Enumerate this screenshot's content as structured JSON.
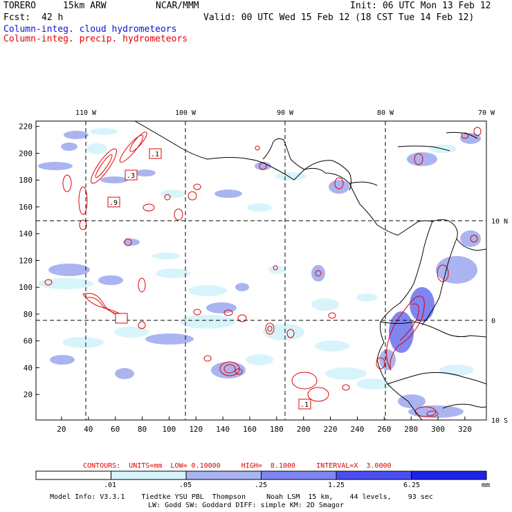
{
  "header": {
    "model": "TORERO",
    "resolution": "15km ARW",
    "org": "NCAR/MMM",
    "init": "Init: 06 UTC Mon 13 Feb 12",
    "fcst_label": "Fcst:",
    "fcst_value": "42 h",
    "valid": "Valid: 00 UTC Wed 15 Feb 12 (18 CST Tue 14 Feb 12)",
    "field1": "Column-integ. cloud hydrometeors",
    "field2": "Column-integ. precip. hydrometeors"
  },
  "colors": {
    "cloud_field": "#1010d0",
    "precip_field": "#e00000",
    "shades": [
      "#ffffff",
      "#d8f4fb",
      "#aab4f0",
      "#7f86f2",
      "#4a4ef2",
      "#1e22e8"
    ]
  },
  "chart_data": {
    "type": "heatmap",
    "x_ticks": [
      "20",
      "40",
      "60",
      "80",
      "100",
      "120",
      "140",
      "160",
      "180",
      "200",
      "220",
      "240",
      "260",
      "280",
      "300",
      "320"
    ],
    "y_ticks": [
      "20",
      "40",
      "60",
      "80",
      "100",
      "120",
      "140",
      "160",
      "180",
      "200",
      "220"
    ],
    "lon_labels": [
      "110 W",
      "100 W",
      "90 W",
      "80 W",
      "70 W"
    ],
    "lat_labels": [
      "10 N",
      "0",
      "10 S"
    ],
    "grid_points": {
      "x_range": [
        1,
        336
      ],
      "y_range": [
        1,
        224
      ]
    },
    "contour_labels": [
      ".1",
      ".3",
      ".9",
      ".1"
    ],
    "contours": {
      "text": "CONTOURS:  UNITS=mm  LOW= 0.10000     HIGH=  8.1000     INTERVAL=X  3.0000",
      "units": "mm",
      "low": 0.1,
      "high": 8.1,
      "interval_factor": 3.0
    },
    "colorbar": {
      "levels": [
        ".01",
        ".05",
        ".25",
        "1.25",
        "6.25"
      ],
      "units": "mm"
    }
  },
  "footer": {
    "line1": "Model Info: V3.3.1    Tiedtke YSU PBL  Thompson     Noah LSM  15 km,    44 levels,    93 sec",
    "line2": "LW: Godd SW: Goddard DIFF: simple KM: 2D Smagor"
  }
}
